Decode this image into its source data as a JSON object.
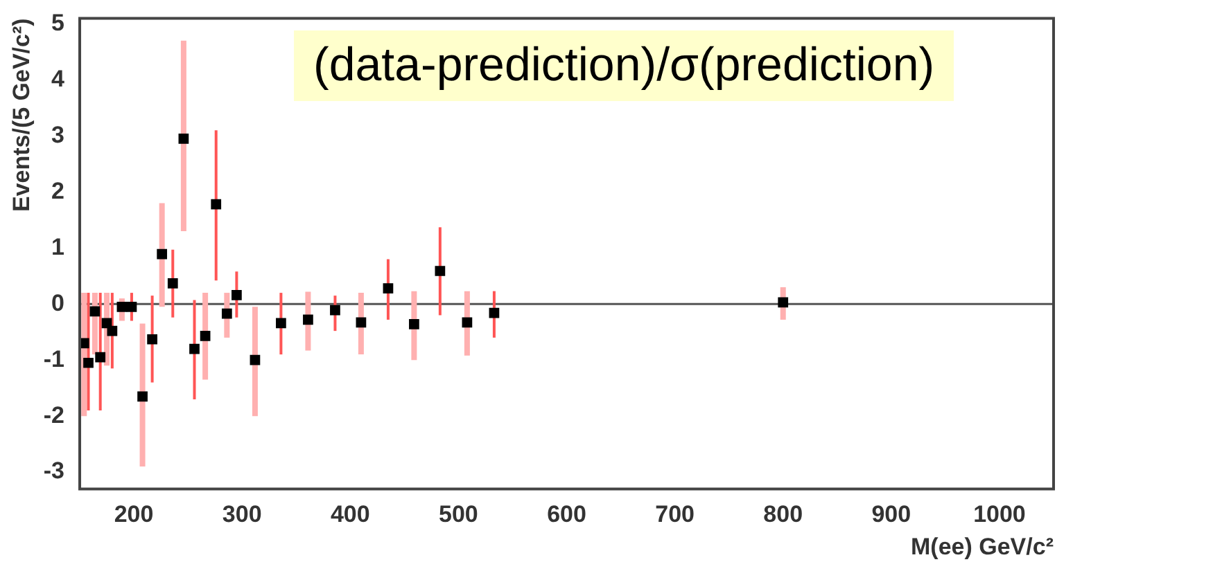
{
  "chart_data": {
    "type": "scatter",
    "xlabel": "M(ee) GeV/c²",
    "ylabel": "Events/(5 GeV/c²)",
    "annotations": [
      "(data-prediction)/σ(prediction)"
    ],
    "xlim": [
      150,
      1050
    ],
    "xticks": [
      200,
      300,
      400,
      500,
      600,
      700,
      800,
      900,
      1000
    ],
    "ylim": [
      -3.3,
      5.1
    ],
    "yticks": [
      -3,
      -2,
      -1,
      0,
      1,
      2,
      3,
      4,
      5
    ],
    "grid": false,
    "legend": false,
    "marker": "square",
    "ref_lines": [
      {
        "axis": "y",
        "value": 0,
        "color": "#555555"
      }
    ],
    "series": [
      {
        "color": "#000000",
        "x": [
          154,
          158,
          164,
          169,
          175,
          180,
          189,
          198,
          208,
          217,
          226,
          236,
          246,
          256,
          266,
          276,
          286,
          295,
          312,
          336,
          361,
          386,
          410,
          435,
          459,
          483,
          508,
          533,
          800
        ],
        "values": [
          -0.7,
          -1.05,
          -0.13,
          -0.95,
          -0.34,
          -0.48,
          -0.05,
          -0.05,
          -1.65,
          -0.63,
          0.89,
          0.37,
          2.95,
          -0.8,
          -0.57,
          1.78,
          -0.17,
          0.16,
          -1.0,
          -0.34,
          -0.28,
          -0.11,
          -0.33,
          0.28,
          -0.36,
          0.59,
          -0.33,
          -0.16,
          0.03
        ],
        "errors": [
          [
            -2.0,
            0.2
          ],
          [
            -1.9,
            0.2
          ],
          [
            -0.9,
            0.2
          ],
          [
            -1.9,
            0.2
          ],
          [
            -1.1,
            0.2
          ],
          [
            -1.15,
            0.2
          ],
          [
            -0.3,
            0.1
          ],
          [
            -0.3,
            0.2
          ],
          [
            -2.9,
            -0.35
          ],
          [
            -1.4,
            0.15
          ],
          [
            -0.05,
            1.8
          ],
          [
            -0.24,
            0.97
          ],
          [
            1.3,
            4.7
          ],
          [
            -1.7,
            0.07
          ],
          [
            -1.35,
            0.2
          ],
          [
            0.42,
            3.1
          ],
          [
            -0.6,
            0.2
          ],
          [
            -0.24,
            0.58
          ],
          [
            -2.0,
            -0.05
          ],
          [
            -0.9,
            0.2
          ],
          [
            -0.83,
            0.22
          ],
          [
            -0.48,
            0.15
          ],
          [
            -0.9,
            0.2
          ],
          [
            -0.28,
            0.8
          ],
          [
            -1.0,
            0.23
          ],
          [
            -0.2,
            1.37
          ],
          [
            -0.92,
            0.23
          ],
          [
            -0.6,
            0.23
          ],
          [
            -0.28,
            0.3
          ]
        ]
      }
    ]
  }
}
